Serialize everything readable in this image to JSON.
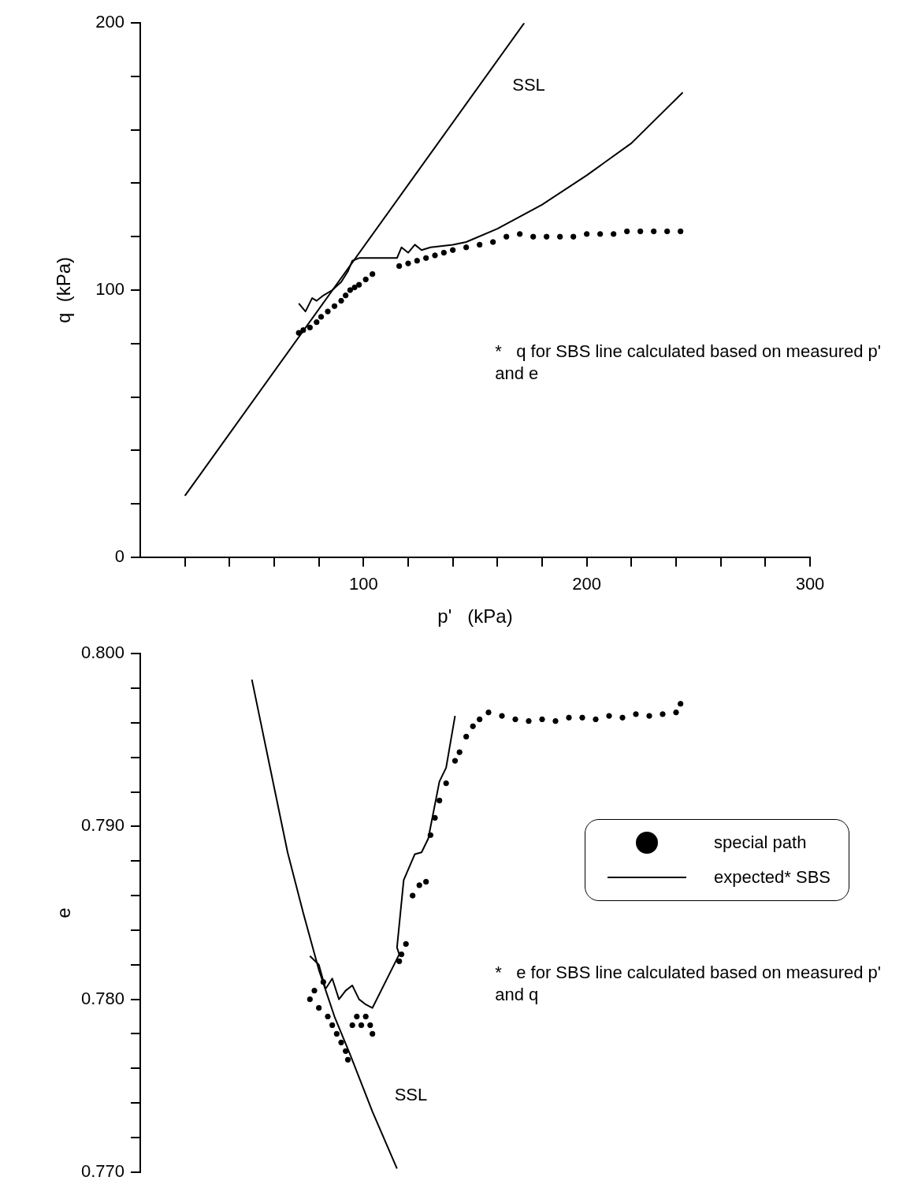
{
  "chart_data": [
    {
      "type": "line",
      "ylabel": "q  (kPa)",
      "xlabel": "p'   (kPa)",
      "xlim": [
        0,
        300
      ],
      "ylim": [
        0,
        200
      ],
      "xticks": [
        {
          "value": 20,
          "label": null
        },
        {
          "value": 40,
          "label": null
        },
        {
          "value": 60,
          "label": null
        },
        {
          "value": 80,
          "label": null
        },
        100,
        {
          "value": 120,
          "label": null
        },
        {
          "value": 140,
          "label": null
        },
        {
          "value": 160,
          "label": null
        },
        {
          "value": 180,
          "label": null
        },
        200,
        {
          "value": 220,
          "label": null
        },
        {
          "value": 240,
          "label": null
        },
        {
          "value": 260,
          "label": null
        },
        {
          "value": 280,
          "label": null
        },
        300
      ],
      "yticks": [
        0,
        {
          "value": 20,
          "label": null
        },
        {
          "value": 40,
          "label": null
        },
        {
          "value": 60,
          "label": null
        },
        {
          "value": 80,
          "label": null
        },
        100,
        {
          "value": 120,
          "label": null
        },
        {
          "value": 140,
          "label": null
        },
        {
          "value": 160,
          "label": null
        },
        {
          "value": 180,
          "label": null
        },
        200
      ],
      "grid": false,
      "legend": false,
      "series": [
        {
          "type": "scatter",
          "marker": "circle",
          "color": "#000000",
          "x": [
            71,
            73,
            76,
            79,
            81,
            84,
            87,
            90,
            92,
            94,
            96,
            98,
            101,
            104,
            116,
            120,
            124,
            128,
            132,
            136,
            140,
            146,
            152,
            158,
            164,
            170,
            176,
            182,
            188,
            194,
            200,
            206,
            212,
            218,
            224,
            230,
            236,
            242
          ],
          "values": [
            84,
            85,
            86,
            88,
            90,
            92,
            94,
            96,
            98,
            100,
            101,
            102,
            104,
            106,
            109,
            110,
            111,
            112,
            113,
            114,
            115,
            116,
            117,
            118,
            120,
            121,
            120,
            120,
            120,
            120,
            121,
            121,
            121,
            122,
            122,
            122,
            122,
            122
          ]
        },
        {
          "color": "#000000",
          "x": [
            71,
            74,
            77,
            79,
            82,
            86,
            90,
            93,
            95,
            98,
            115,
            117,
            120,
            123,
            126,
            130,
            140,
            146,
            160,
            180,
            200,
            220,
            243
          ],
          "values": [
            95,
            92,
            97,
            96,
            98,
            100,
            103,
            107,
            111,
            112,
            112,
            116,
            114,
            117,
            115,
            116,
            117,
            118,
            123,
            132,
            143,
            155,
            174
          ]
        },
        {
          "color": "#000000",
          "x": [
            20,
            172
          ],
          "values": [
            23,
            200
          ]
        }
      ],
      "annotations": [
        "SSL",
        "*   q for SBS line calculated based on measured p' and e"
      ]
    },
    {
      "type": "line",
      "ylabel": "e",
      "xlim": [
        0,
        300
      ],
      "ylim": [
        0.77,
        0.8
      ],
      "tick_labels": "y",
      "yticks": [
        {
          "value": 0.77,
          "label": "0.770"
        },
        {
          "value": 0.772,
          "label": null
        },
        {
          "value": 0.774,
          "label": null
        },
        {
          "value": 0.776,
          "label": null
        },
        {
          "value": 0.778,
          "label": null
        },
        {
          "value": 0.78,
          "label": "0.780"
        },
        {
          "value": 0.782,
          "label": null
        },
        {
          "value": 0.784,
          "label": null
        },
        {
          "value": 0.786,
          "label": null
        },
        {
          "value": 0.788,
          "label": null
        },
        {
          "value": 0.79,
          "label": "0.790"
        },
        {
          "value": 0.792,
          "label": null
        },
        {
          "value": 0.794,
          "label": null
        },
        {
          "value": 0.796,
          "label": null
        },
        {
          "value": 0.798,
          "label": null
        },
        {
          "value": 0.8,
          "label": "0.800"
        }
      ],
      "grid": false,
      "legend": "right",
      "series": [
        {
          "type": "scatter",
          "name": "special path",
          "marker": "circle",
          "color": "#000000",
          "x": [
            76,
            78,
            80,
            82,
            84,
            86,
            88,
            90,
            92,
            93,
            95,
            97,
            99,
            101,
            103,
            104,
            116,
            117,
            119,
            122,
            125,
            128,
            130,
            132,
            134,
            137,
            141,
            143,
            146,
            149,
            152,
            156,
            162,
            168,
            174,
            180,
            186,
            192,
            198,
            204,
            210,
            216,
            222,
            228,
            234,
            240,
            242
          ],
          "values": [
            0.78,
            0.7805,
            0.7795,
            0.781,
            0.779,
            0.7785,
            0.778,
            0.7775,
            0.777,
            0.7765,
            0.7785,
            0.779,
            0.7785,
            0.779,
            0.7785,
            0.778,
            0.7822,
            0.7826,
            0.7832,
            0.786,
            0.7866,
            0.7868,
            0.7895,
            0.7905,
            0.7915,
            0.7925,
            0.7938,
            0.7943,
            0.7952,
            0.7958,
            0.7962,
            0.7966,
            0.7964,
            0.7962,
            0.7961,
            0.7962,
            0.7961,
            0.7963,
            0.7963,
            0.7962,
            0.7964,
            0.7963,
            0.7965,
            0.7964,
            0.7965,
            0.7966,
            0.7971
          ]
        },
        {
          "name": "expected* SBS",
          "color": "#000000",
          "x": [
            76,
            80,
            83,
            86,
            89,
            92,
            95,
            98,
            101,
            104,
            116,
            115,
            118,
            123,
            126,
            129,
            134,
            137,
            141
          ],
          "values": [
            0.7825,
            0.782,
            0.7806,
            0.7812,
            0.78,
            0.7805,
            0.7808,
            0.78,
            0.7797,
            0.7795,
            0.7826,
            0.783,
            0.7869,
            0.7884,
            0.7885,
            0.7893,
            0.7926,
            0.7934,
            0.7964
          ]
        },
        {
          "color": "#000000",
          "x": [
            50,
            58,
            66,
            73,
            80,
            87,
            94,
            104,
            115
          ],
          "values": [
            0.7985,
            0.7935,
            0.7885,
            0.785,
            0.7817,
            0.779,
            0.7768,
            0.7735,
            0.7702
          ]
        }
      ],
      "annotations": [
        "SSL",
        "*   e for SBS line calculated based on measured p' and q"
      ]
    }
  ]
}
